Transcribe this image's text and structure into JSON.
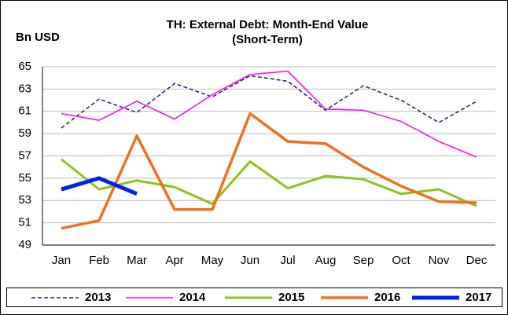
{
  "chart_data": {
    "type": "line",
    "title": "TH: External Debt: Month-End Value",
    "subtitle": "(Short-Term)",
    "y_label": "Bn USD",
    "categories": [
      "Jan",
      "Feb",
      "Mar",
      "Apr",
      "May",
      "Jun",
      "Jul",
      "Aug",
      "Sep",
      "Oct",
      "Nov",
      "Dec"
    ],
    "series": [
      {
        "name": "2013",
        "color": "#1f1f7a",
        "line_style": "dashed",
        "values": [
          59.5,
          62.1,
          60.9,
          63.5,
          62.3,
          64.2,
          63.7,
          61.1,
          63.3,
          62.0,
          60.0,
          61.9
        ]
      },
      {
        "name": "2014",
        "color": "#ff00ff",
        "values": [
          60.8,
          60.2,
          61.9,
          60.3,
          62.5,
          64.3,
          64.6,
          61.2,
          61.1,
          60.1,
          58.3,
          56.9
        ]
      },
      {
        "name": "2015",
        "color": "#8dc41e",
        "values": [
          56.7,
          54.0,
          54.8,
          54.2,
          52.7,
          56.5,
          54.1,
          55.2,
          54.9,
          53.6,
          54.0,
          52.5
        ]
      },
      {
        "name": "2016",
        "color": "#f07020",
        "values": [
          50.5,
          51.2,
          58.8,
          52.2,
          52.2,
          60.8,
          58.3,
          58.1,
          56.0,
          54.3,
          52.9,
          52.8
        ]
      },
      {
        "name": "2017",
        "color": "#0022ee",
        "values": [
          54.0,
          55.0,
          53.6,
          null,
          null,
          null,
          null,
          null,
          null,
          null,
          null,
          null
        ]
      }
    ],
    "ylim": [
      49,
      65
    ],
    "yticks": [
      49,
      51,
      53,
      55,
      57,
      59,
      61,
      63,
      65
    ],
    "grid": true
  }
}
